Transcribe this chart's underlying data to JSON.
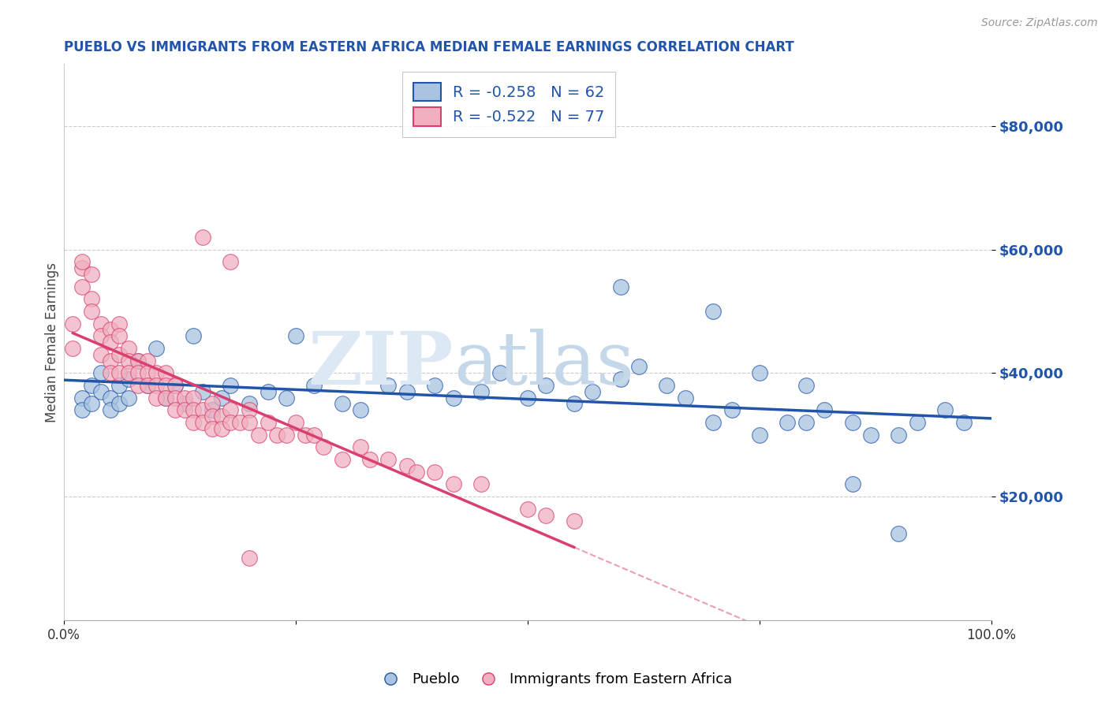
{
  "title": "PUEBLO VS IMMIGRANTS FROM EASTERN AFRICA MEDIAN FEMALE EARNINGS CORRELATION CHART",
  "source": "Source: ZipAtlas.com",
  "ylabel": "Median Female Earnings",
  "xlim": [
    0,
    1.0
  ],
  "ylim": [
    0,
    90000
  ],
  "yticks": [
    20000,
    40000,
    60000,
    80000
  ],
  "ytick_labels": [
    "$20,000",
    "$40,000",
    "$60,000",
    "$80,000"
  ],
  "xtick_labels": [
    "0.0%",
    "100.0%"
  ],
  "pueblo_color": "#a8c4e0",
  "eastern_africa_color": "#f0b0c0",
  "pueblo_line_color": "#2255aa",
  "eastern_africa_line_color": "#d94070",
  "pueblo_R": -0.258,
  "pueblo_N": 62,
  "eastern_africa_R": -0.522,
  "eastern_africa_N": 77,
  "legend_label_1": "Pueblo",
  "legend_label_2": "Immigrants from Eastern Africa",
  "title_color": "#2255aa",
  "source_color": "#999999",
  "ytick_color": "#2255aa",
  "background_color": "#ffffff",
  "pueblo_scatter_x": [
    0.02,
    0.02,
    0.03,
    0.03,
    0.04,
    0.04,
    0.05,
    0.05,
    0.06,
    0.06,
    0.07,
    0.07,
    0.08,
    0.09,
    0.1,
    0.11,
    0.12,
    0.13,
    0.14,
    0.15,
    0.16,
    0.17,
    0.18,
    0.2,
    0.22,
    0.24,
    0.25,
    0.27,
    0.3,
    0.32,
    0.35,
    0.37,
    0.4,
    0.42,
    0.45,
    0.47,
    0.5,
    0.52,
    0.55,
    0.57,
    0.6,
    0.62,
    0.65,
    0.67,
    0.7,
    0.72,
    0.75,
    0.78,
    0.8,
    0.82,
    0.85,
    0.87,
    0.9,
    0.92,
    0.95,
    0.97,
    0.6,
    0.7,
    0.75,
    0.8,
    0.85,
    0.9
  ],
  "pueblo_scatter_y": [
    36000,
    34000,
    38000,
    35000,
    40000,
    37000,
    36000,
    34000,
    38000,
    35000,
    39000,
    36000,
    42000,
    38000,
    44000,
    36000,
    38000,
    35000,
    46000,
    37000,
    34000,
    36000,
    38000,
    35000,
    37000,
    36000,
    46000,
    38000,
    35000,
    34000,
    38000,
    37000,
    38000,
    36000,
    37000,
    40000,
    36000,
    38000,
    35000,
    37000,
    39000,
    41000,
    38000,
    36000,
    32000,
    34000,
    30000,
    32000,
    32000,
    34000,
    32000,
    30000,
    30000,
    32000,
    34000,
    32000,
    54000,
    50000,
    40000,
    38000,
    22000,
    14000
  ],
  "ea_scatter_x": [
    0.01,
    0.01,
    0.02,
    0.02,
    0.02,
    0.03,
    0.03,
    0.03,
    0.04,
    0.04,
    0.04,
    0.05,
    0.05,
    0.05,
    0.05,
    0.06,
    0.06,
    0.06,
    0.06,
    0.07,
    0.07,
    0.07,
    0.08,
    0.08,
    0.08,
    0.09,
    0.09,
    0.09,
    0.1,
    0.1,
    0.1,
    0.11,
    0.11,
    0.11,
    0.12,
    0.12,
    0.12,
    0.13,
    0.13,
    0.14,
    0.14,
    0.14,
    0.15,
    0.15,
    0.16,
    0.16,
    0.16,
    0.17,
    0.17,
    0.18,
    0.18,
    0.19,
    0.2,
    0.2,
    0.21,
    0.22,
    0.23,
    0.24,
    0.25,
    0.26,
    0.27,
    0.28,
    0.3,
    0.32,
    0.33,
    0.35,
    0.37,
    0.38,
    0.4,
    0.42,
    0.45,
    0.5,
    0.52,
    0.55,
    0.15,
    0.18,
    0.2
  ],
  "ea_scatter_y": [
    48000,
    44000,
    57000,
    58000,
    54000,
    56000,
    52000,
    50000,
    48000,
    46000,
    43000,
    47000,
    45000,
    42000,
    40000,
    48000,
    46000,
    43000,
    40000,
    44000,
    42000,
    40000,
    42000,
    40000,
    38000,
    42000,
    40000,
    38000,
    40000,
    38000,
    36000,
    40000,
    38000,
    36000,
    38000,
    36000,
    34000,
    36000,
    34000,
    36000,
    34000,
    32000,
    34000,
    32000,
    35000,
    33000,
    31000,
    33000,
    31000,
    34000,
    32000,
    32000,
    34000,
    32000,
    30000,
    32000,
    30000,
    30000,
    32000,
    30000,
    30000,
    28000,
    26000,
    28000,
    26000,
    26000,
    25000,
    24000,
    24000,
    22000,
    22000,
    18000,
    17000,
    16000,
    62000,
    58000,
    10000
  ]
}
